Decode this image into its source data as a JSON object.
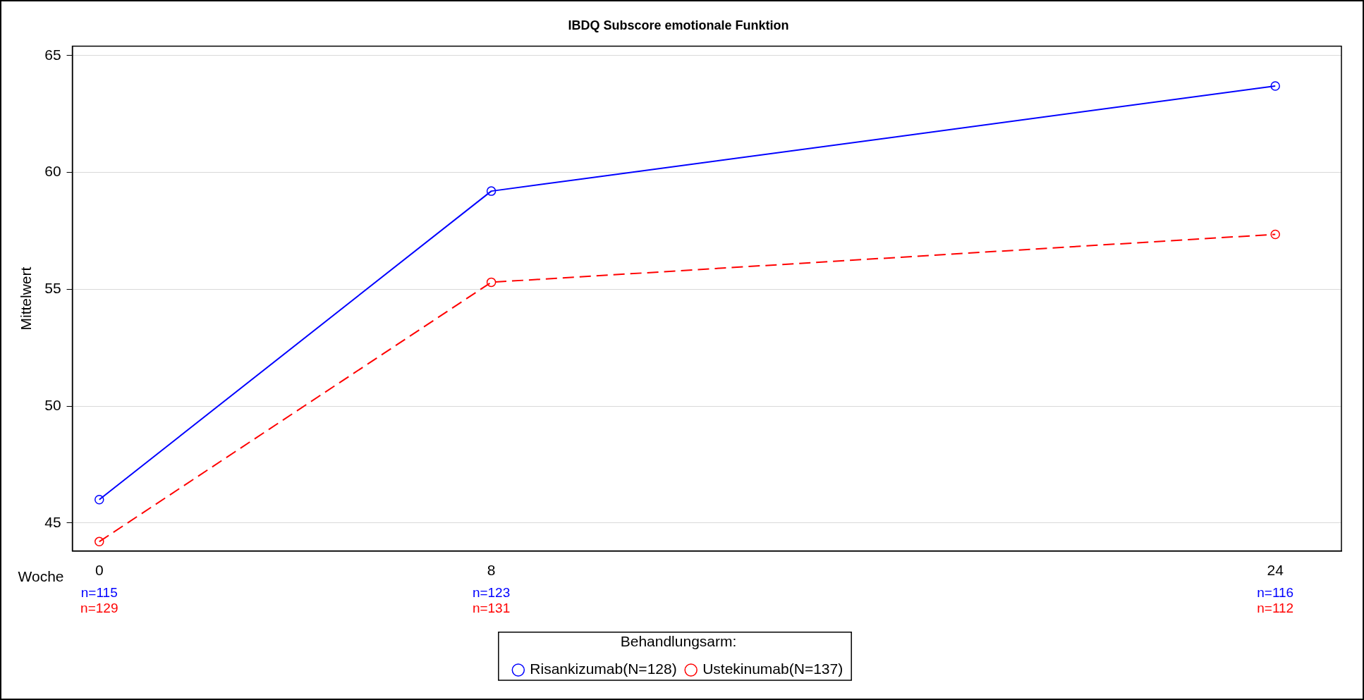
{
  "chart_data": {
    "type": "line",
    "title": "IBDQ Subscore emotionale Funktion",
    "xlabel": "Woche",
    "ylabel": "Mittelwert",
    "legend_title": "Behandlungsarm:",
    "x": [
      0,
      8,
      24
    ],
    "series": [
      {
        "name": "Risankizumab(N=128)",
        "color": "#0000ff",
        "values": [
          46.0,
          59.2,
          63.7
        ],
        "line_style": "solid"
      },
      {
        "name": "Ustekinumab(N=137)",
        "color": "#ff0000",
        "values": [
          44.2,
          55.3,
          57.35
        ],
        "line_style": "dashed"
      }
    ],
    "xlim": [
      -0.55,
      25.35
    ],
    "xticks": [
      0,
      8,
      24
    ],
    "ylim": [
      43.8,
      65.4
    ],
    "yticks": [
      45,
      50,
      55,
      60,
      65
    ],
    "annotations": [
      "n=115",
      "n=123",
      "n=116",
      "n=129",
      "n=131",
      "n=112"
    ],
    "grid": "y",
    "legend": "bottom",
    "marker": "circle"
  }
}
